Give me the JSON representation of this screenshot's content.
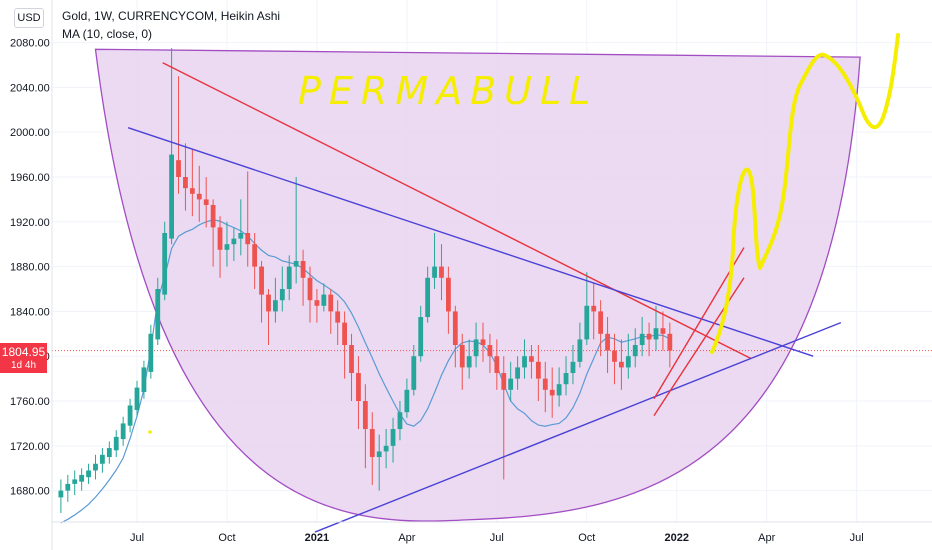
{
  "header": {
    "title": "Gold, 1W, CURRENCYCOM, Heikin Ashi",
    "indicator": "MA (10, close, 0)",
    "currency_button": "USD"
  },
  "price_tag": {
    "value": "1804.95",
    "countdown": "1d 4h",
    "color": "#f23645"
  },
  "annotation_text": "PERMABULL",
  "colors": {
    "up": "#26a69a",
    "down": "#ef5350",
    "ma": "#5b9bd5",
    "bowl_fill": "#e7d3ee",
    "bowl_stroke": "#a24dc3",
    "trend_red": "#e8323c",
    "trend_blue": "#4a42d6",
    "scribble": "#f5ee00"
  },
  "chart_data": {
    "type": "candlestick",
    "title": "Gold, 1W, CURRENCYCOM, Heikin Ashi",
    "ylim": [
      1652,
      2118
    ],
    "y_ticks": [
      1680,
      1720,
      1760,
      1800,
      1840,
      1880,
      1920,
      1960,
      2000,
      2040,
      2080
    ],
    "y_tick_labels": [
      "1680.00",
      "1720.00",
      "1760.00",
      "1800.00",
      "1840.00",
      "1880.00",
      "1920.00",
      "1960.00",
      "2000.00",
      "2040.00",
      "2080.00"
    ],
    "x_tick_labels": [
      "Jul",
      "Oct",
      "2021",
      "Apr",
      "Jul",
      "Oct",
      "2022",
      "Apr",
      "Jul"
    ],
    "x_tick_weeks": [
      0,
      13,
      26,
      39,
      52,
      65,
      78,
      91,
      104
    ],
    "first_week_offset": -11,
    "last_price": 1804.95,
    "series": [
      {
        "name": "Gold",
        "candles": [
          [
            1674,
            1680,
            1660,
            1690
          ],
          [
            1680,
            1686,
            1670,
            1694
          ],
          [
            1686,
            1690,
            1676,
            1698
          ],
          [
            1688,
            1694,
            1680,
            1700
          ],
          [
            1692,
            1698,
            1686,
            1704
          ],
          [
            1698,
            1704,
            1690,
            1712
          ],
          [
            1704,
            1712,
            1696,
            1718
          ],
          [
            1710,
            1718,
            1704,
            1724
          ],
          [
            1716,
            1728,
            1710,
            1734
          ],
          [
            1726,
            1740,
            1720,
            1746
          ],
          [
            1738,
            1756,
            1732,
            1762
          ],
          [
            1752,
            1772,
            1746,
            1778
          ],
          [
            1768,
            1790,
            1762,
            1796
          ],
          [
            1786,
            1820,
            1780,
            1828
          ],
          [
            1815,
            1860,
            1810,
            1870
          ],
          [
            1855,
            1910,
            1850,
            1920
          ],
          [
            1905,
            1980,
            1900,
            2075
          ],
          [
            1975,
            1960,
            1945,
            2050
          ],
          [
            1960,
            1950,
            1930,
            1990
          ],
          [
            1950,
            1945,
            1925,
            1985
          ],
          [
            1945,
            1940,
            1920,
            1970
          ],
          [
            1940,
            1935,
            1915,
            1960
          ],
          [
            1935,
            1915,
            1880,
            1940
          ],
          [
            1915,
            1895,
            1870,
            1925
          ],
          [
            1895,
            1900,
            1880,
            1920
          ],
          [
            1900,
            1905,
            1885,
            1915
          ],
          [
            1905,
            1910,
            1890,
            1940
          ],
          [
            1910,
            1900,
            1880,
            1965
          ],
          [
            1900,
            1880,
            1860,
            1910
          ],
          [
            1880,
            1855,
            1830,
            1885
          ],
          [
            1855,
            1840,
            1810,
            1860
          ],
          [
            1840,
            1850,
            1830,
            1870
          ],
          [
            1850,
            1860,
            1840,
            1880
          ],
          [
            1860,
            1880,
            1850,
            1890
          ],
          [
            1880,
            1885,
            1865,
            1960
          ],
          [
            1885,
            1870,
            1845,
            1895
          ],
          [
            1870,
            1850,
            1830,
            1880
          ],
          [
            1850,
            1845,
            1830,
            1860
          ],
          [
            1845,
            1855,
            1840,
            1865
          ],
          [
            1855,
            1840,
            1820,
            1860
          ],
          [
            1840,
            1830,
            1810,
            1850
          ],
          [
            1830,
            1810,
            1780,
            1840
          ],
          [
            1810,
            1785,
            1760,
            1820
          ],
          [
            1785,
            1760,
            1735,
            1800
          ],
          [
            1760,
            1735,
            1700,
            1775
          ],
          [
            1735,
            1710,
            1685,
            1750
          ],
          [
            1710,
            1715,
            1680,
            1730
          ],
          [
            1715,
            1720,
            1700,
            1735
          ],
          [
            1720,
            1735,
            1705,
            1745
          ],
          [
            1735,
            1750,
            1725,
            1760
          ],
          [
            1750,
            1770,
            1745,
            1780
          ],
          [
            1770,
            1800,
            1765,
            1810
          ],
          [
            1800,
            1835,
            1795,
            1845
          ],
          [
            1835,
            1870,
            1830,
            1880
          ],
          [
            1870,
            1880,
            1860,
            1910
          ],
          [
            1880,
            1870,
            1850,
            1900
          ],
          [
            1870,
            1840,
            1820,
            1880
          ],
          [
            1840,
            1810,
            1790,
            1845
          ],
          [
            1810,
            1790,
            1770,
            1820
          ],
          [
            1790,
            1800,
            1780,
            1815
          ],
          [
            1800,
            1815,
            1790,
            1830
          ],
          [
            1815,
            1810,
            1795,
            1830
          ],
          [
            1810,
            1800,
            1785,
            1820
          ],
          [
            1800,
            1785,
            1770,
            1815
          ],
          [
            1785,
            1770,
            1690,
            1800
          ],
          [
            1770,
            1780,
            1760,
            1795
          ],
          [
            1780,
            1790,
            1770,
            1800
          ],
          [
            1790,
            1800,
            1780,
            1815
          ],
          [
            1800,
            1795,
            1780,
            1810
          ],
          [
            1795,
            1780,
            1760,
            1810
          ],
          [
            1780,
            1770,
            1750,
            1795
          ],
          [
            1770,
            1765,
            1745,
            1790
          ],
          [
            1765,
            1775,
            1755,
            1790
          ],
          [
            1775,
            1785,
            1765,
            1800
          ],
          [
            1785,
            1795,
            1775,
            1810
          ],
          [
            1795,
            1815,
            1790,
            1830
          ],
          [
            1815,
            1845,
            1810,
            1875
          ],
          [
            1845,
            1840,
            1815,
            1865
          ],
          [
            1840,
            1820,
            1800,
            1850
          ],
          [
            1820,
            1805,
            1785,
            1835
          ],
          [
            1805,
            1795,
            1775,
            1820
          ],
          [
            1795,
            1790,
            1770,
            1815
          ],
          [
            1790,
            1800,
            1780,
            1820
          ],
          [
            1800,
            1810,
            1790,
            1825
          ],
          [
            1810,
            1820,
            1800,
            1835
          ],
          [
            1820,
            1815,
            1800,
            1830
          ],
          [
            1815,
            1825,
            1805,
            1845
          ],
          [
            1825,
            1820,
            1805,
            1840
          ],
          [
            1820,
            1805,
            1790,
            1830
          ]
        ]
      },
      {
        "name": "MA (10, close, 0)",
        "values": [
          1651.2,
          1654.4,
          1658.3,
          1662.7,
          1667.8,
          1674.2,
          1681.5,
          1689.6,
          1698.4,
          1709.1,
          1726.5,
          1746.5,
          1770.4,
          1806.6,
          1850.2,
          1871.1,
          1896.2,
          1907.1,
          1910.8,
          1913.3,
          1917.3,
          1920,
          1921.7,
          1920.6,
          1917.4,
          1914.8,
          1911.9,
          1907.4,
          1900.5,
          1894.6,
          1890,
          1888.5,
          1885.1,
          1883.6,
          1882.1,
          1878.3,
          1872.8,
          1867.5,
          1863.7,
          1859.5,
          1855,
          1848.5,
          1838.5,
          1826,
          1812,
          1798.5,
          1784.3,
          1771.8,
          1759.8,
          1748.3,
          1739.5,
          1737.5,
          1742.5,
          1753,
          1767.5,
          1783,
          1796,
          1806.5,
          1812,
          1813.5,
          1813,
          1810,
          1803,
          1791.5,
          1775,
          1760,
          1753,
          1749,
          1742.5,
          1738.5,
          1737.5,
          1739,
          1740,
          1745,
          1754,
          1767,
          1784,
          1798,
          1812,
          1817,
          1815.5,
          1812.5,
          1814,
          1815.5,
          1817.5,
          1817.5,
          1819,
          1818.5,
          1815.5
        ]
      }
    ],
    "trendlines": [
      {
        "name": "red-resistance",
        "from": [
          "2020-07-27",
          2062
        ],
        "to": [
          "2022-03-14",
          1798
        ]
      },
      {
        "name": "blue-upper",
        "from": [
          "2020-06-22",
          2004
        ],
        "to": [
          "2022-05-16",
          1800
        ]
      },
      {
        "name": "blue-lower",
        "from": [
          "2020-12-28",
          1643
        ],
        "to": [
          "2022-06-13",
          1830
        ]
      },
      {
        "name": "red-channel-1",
        "from": [
          "2021-12-06",
          1762
        ],
        "to": [
          "2022-03-07",
          1897
        ]
      },
      {
        "name": "red-channel-2",
        "from": [
          "2021-12-06",
          1747
        ],
        "to": [
          "2022-03-07",
          1870
        ]
      }
    ]
  }
}
